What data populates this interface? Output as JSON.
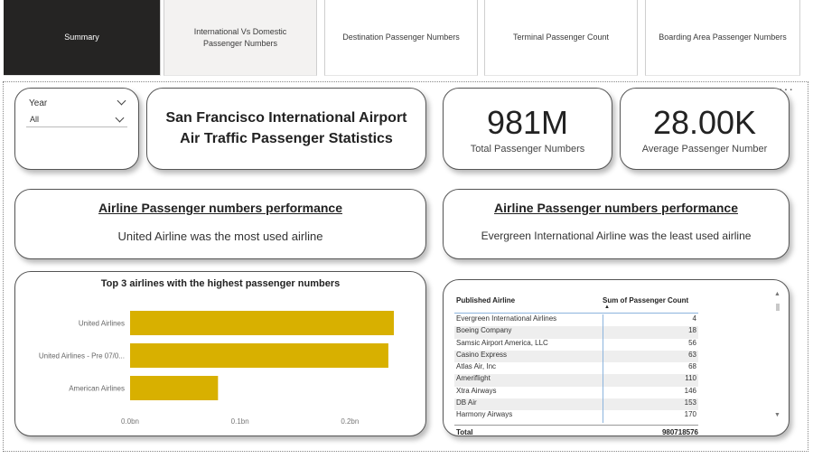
{
  "tabs": [
    {
      "label": "Summary"
    },
    {
      "label": "International Vs Domestic Passenger Numbers"
    },
    {
      "label": "Destination Passenger Numbers"
    },
    {
      "label": "Terminal Passenger Count"
    },
    {
      "label": "Boarding Area Passenger Numbers"
    }
  ],
  "slicer": {
    "label": "Year",
    "value": "All"
  },
  "title": {
    "line1": "San Francisco International Airport",
    "line2": "Air Traffic Passenger Statistics"
  },
  "kpi_total": {
    "value": "981M",
    "label": "Total Passenger Numbers"
  },
  "kpi_avg": {
    "value": "28.00K",
    "label": "Average Passenger Number"
  },
  "perf_most": {
    "heading": "Airline Passenger numbers performance",
    "text": "United Airline was the most used airline"
  },
  "perf_least": {
    "heading": "Airline Passenger numbers performance",
    "text": "Evergreen International  Airline was the least used airline"
  },
  "more_options": "···",
  "chart_data": {
    "type": "bar",
    "title": "Top 3 airlines with the highest passenger numbers",
    "orientation": "horizontal",
    "categories": [
      "United Airlines",
      "United Airlines - Pre 07/0...",
      "American Airlines"
    ],
    "values": [
      0.24,
      0.235,
      0.08
    ],
    "xlim": [
      0,
      0.24
    ],
    "xticks": [
      0,
      0.1,
      0.2
    ],
    "xtick_labels": [
      "0.0bn",
      "0.1bn",
      "0.2bn"
    ],
    "xlabel": "",
    "ylabel": "",
    "color": "#d8b000"
  },
  "table": {
    "col1": "Published Airline",
    "col2": "Sum of Passenger Count",
    "rows": [
      {
        "airline": "Evergreen International Airlines",
        "count": "4"
      },
      {
        "airline": "Boeing Company",
        "count": "18"
      },
      {
        "airline": "Samsic Airport America, LLC",
        "count": "56"
      },
      {
        "airline": "Casino Express",
        "count": "63"
      },
      {
        "airline": "Atlas Air, Inc",
        "count": "68"
      },
      {
        "airline": "Ameriflight",
        "count": "110"
      },
      {
        "airline": "Xtra Airways",
        "count": "146"
      },
      {
        "airline": "DB Air",
        "count": "153"
      },
      {
        "airline": "Harmony Airways",
        "count": "170"
      }
    ],
    "total_label": "Total",
    "total_value": "980718576"
  }
}
